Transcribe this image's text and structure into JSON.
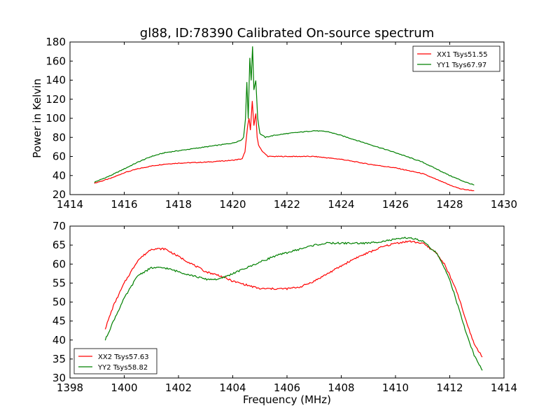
{
  "chart_data": [
    {
      "type": "line",
      "title": "gl88, ID:78390 Calibrated On-source spectrum",
      "xlabel": "",
      "ylabel": "Power in Kelvin",
      "xlim": [
        1414,
        1430
      ],
      "ylim": [
        20,
        180
      ],
      "xticks": [
        1414,
        1416,
        1418,
        1420,
        1422,
        1424,
        1426,
        1428,
        1430
      ],
      "yticks": [
        20,
        40,
        60,
        80,
        100,
        120,
        140,
        160,
        180
      ],
      "legend_position": "top-right",
      "series": [
        {
          "name": "XX1 Tsys51.55",
          "color": "#ff0000",
          "points": [
            [
              1414.9,
              32
            ],
            [
              1415.5,
              37
            ],
            [
              1416,
              43
            ],
            [
              1416.5,
              47
            ],
            [
              1417,
              50
            ],
            [
              1417.5,
              52
            ],
            [
              1418,
              53
            ],
            [
              1419,
              54
            ],
            [
              1420,
              56
            ],
            [
              1420.35,
              57.5
            ],
            [
              1420.45,
              65
            ],
            [
              1420.55,
              92
            ],
            [
              1420.6,
              100
            ],
            [
              1420.65,
              88
            ],
            [
              1420.72,
              118
            ],
            [
              1420.78,
              92
            ],
            [
              1420.85,
              105
            ],
            [
              1420.9,
              80
            ],
            [
              1420.95,
              72
            ],
            [
              1421.1,
              65
            ],
            [
              1421.3,
              60
            ],
            [
              1422,
              60
            ],
            [
              1423,
              60
            ],
            [
              1424,
              57
            ],
            [
              1425,
              52
            ],
            [
              1426,
              48
            ],
            [
              1427,
              42
            ],
            [
              1428,
              30
            ],
            [
              1428.4,
              26
            ],
            [
              1428.9,
              24
            ]
          ]
        },
        {
          "name": "YY1 Tsys67.97",
          "color": "#008000",
          "points": [
            [
              1414.9,
              33
            ],
            [
              1415.5,
              40
            ],
            [
              1416,
              47
            ],
            [
              1416.5,
              54
            ],
            [
              1417,
              60
            ],
            [
              1417.5,
              64
            ],
            [
              1418,
              66
            ],
            [
              1419,
              70
            ],
            [
              1420,
              74
            ],
            [
              1420.3,
              77
            ],
            [
              1420.4,
              80
            ],
            [
              1420.47,
              100
            ],
            [
              1420.52,
              138
            ],
            [
              1420.57,
              100
            ],
            [
              1420.63,
              163
            ],
            [
              1420.68,
              140
            ],
            [
              1420.73,
              175
            ],
            [
              1420.78,
              130
            ],
            [
              1420.85,
              140
            ],
            [
              1420.92,
              100
            ],
            [
              1421,
              84
            ],
            [
              1421.2,
              80
            ],
            [
              1421.5,
              82
            ],
            [
              1422,
              84
            ],
            [
              1423,
              87
            ],
            [
              1423.5,
              86
            ],
            [
              1424,
              82
            ],
            [
              1425,
              73
            ],
            [
              1426,
              64
            ],
            [
              1427,
              54
            ],
            [
              1428,
              40
            ],
            [
              1428.5,
              34
            ],
            [
              1428.9,
              30
            ]
          ]
        }
      ]
    },
    {
      "type": "line",
      "title": "",
      "xlabel": "Frequency (MHz)",
      "ylabel": "",
      "xlim": [
        1398,
        1414
      ],
      "ylim": [
        30,
        70
      ],
      "xticks": [
        1398,
        1400,
        1402,
        1404,
        1406,
        1408,
        1410,
        1412,
        1414
      ],
      "yticks": [
        30,
        35,
        40,
        45,
        50,
        55,
        60,
        65,
        70
      ],
      "legend_position": "bottom-left",
      "series": [
        {
          "name": "XX2 Tsys57.63",
          "color": "#ff0000",
          "points": [
            [
              1399.3,
              43
            ],
            [
              1399.6,
              49
            ],
            [
              1400,
              55
            ],
            [
              1400.5,
              61
            ],
            [
              1401,
              64
            ],
            [
              1401.5,
              64
            ],
            [
              1402,
              62
            ],
            [
              1402.5,
              60
            ],
            [
              1403,
              58
            ],
            [
              1403.5,
              57
            ],
            [
              1404,
              55.5
            ],
            [
              1404.5,
              54.5
            ],
            [
              1405,
              53.5
            ],
            [
              1405.5,
              53.5
            ],
            [
              1406,
              53.5
            ],
            [
              1406.5,
              54
            ],
            [
              1407,
              55.5
            ],
            [
              1407.5,
              57.5
            ],
            [
              1408,
              59.5
            ],
            [
              1408.5,
              61.5
            ],
            [
              1409,
              63
            ],
            [
              1409.5,
              64.5
            ],
            [
              1410,
              65.5
            ],
            [
              1410.5,
              66
            ],
            [
              1411,
              65.5
            ],
            [
              1411.5,
              63
            ],
            [
              1411.8,
              60
            ],
            [
              1412,
              57
            ],
            [
              1412.3,
              52
            ],
            [
              1412.6,
              45
            ],
            [
              1412.9,
              39
            ],
            [
              1413.2,
              35.5
            ]
          ]
        },
        {
          "name": "YY2 Tsys58.82",
          "color": "#008000",
          "points": [
            [
              1399.3,
              40
            ],
            [
              1399.6,
              45
            ],
            [
              1400,
              51
            ],
            [
              1400.5,
              57
            ],
            [
              1401,
              59
            ],
            [
              1401.5,
              59
            ],
            [
              1402,
              58
            ],
            [
              1402.5,
              57
            ],
            [
              1403,
              56
            ],
            [
              1403.5,
              56
            ],
            [
              1404,
              57.5
            ],
            [
              1404.5,
              59
            ],
            [
              1405,
              60.5
            ],
            [
              1405.5,
              62
            ],
            [
              1406,
              63
            ],
            [
              1406.5,
              64
            ],
            [
              1407,
              65
            ],
            [
              1407.5,
              65.5
            ],
            [
              1408,
              65.5
            ],
            [
              1408.5,
              65.5
            ],
            [
              1409,
              65.5
            ],
            [
              1409.5,
              66
            ],
            [
              1410,
              66.5
            ],
            [
              1410.5,
              67
            ],
            [
              1411,
              66
            ],
            [
              1411.5,
              63
            ],
            [
              1411.8,
              59
            ],
            [
              1412,
              56
            ],
            [
              1412.3,
              49
            ],
            [
              1412.6,
              42
            ],
            [
              1412.9,
              36
            ],
            [
              1413.2,
              32
            ]
          ]
        }
      ]
    }
  ]
}
